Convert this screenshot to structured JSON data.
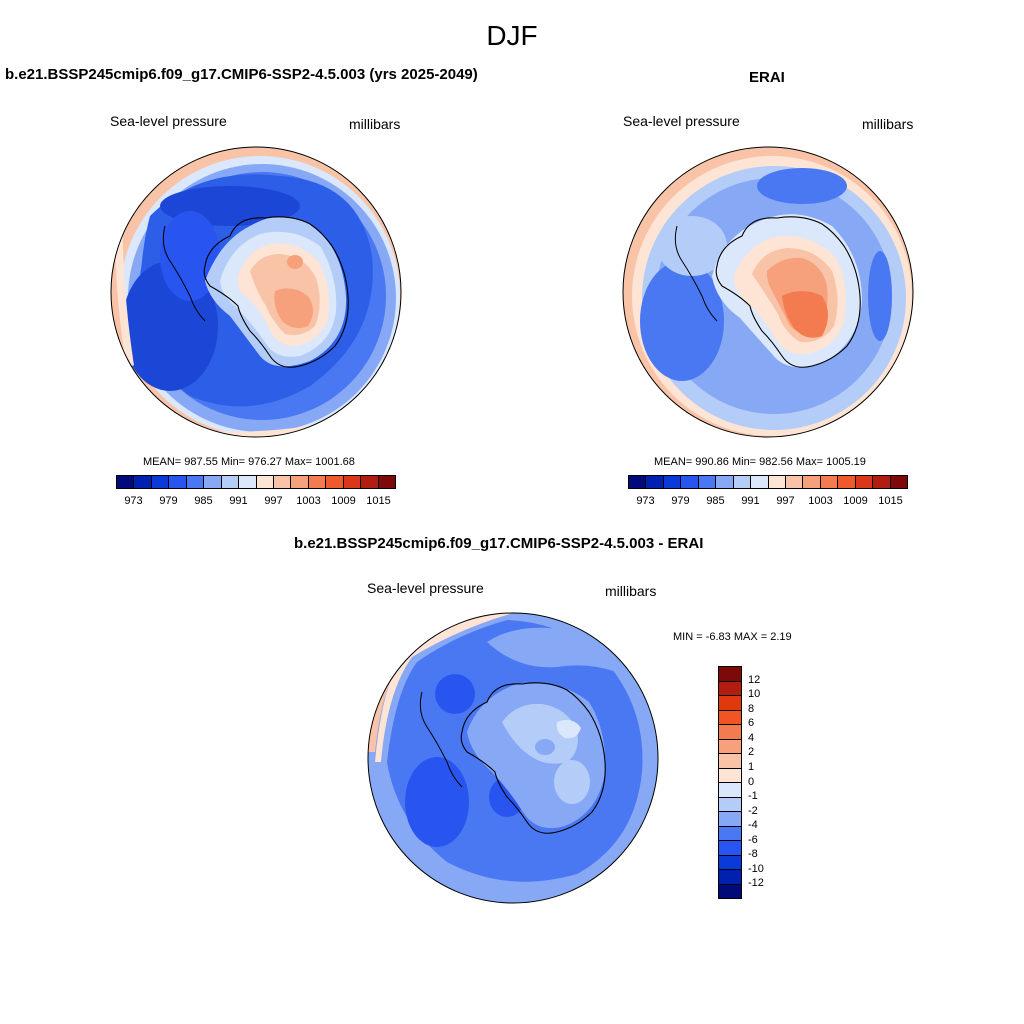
{
  "title": "DJF",
  "panels": {
    "model": {
      "title": "b.e21.BSSP245cmip6.f09_g17.CMIP6-SSP2-4.5.003 (yrs 2025-2049)",
      "left_label": "Sea-level pressure",
      "right_label": "millibars",
      "stats": "MEAN= 987.55  Min= 976.27  Max= 1001.68"
    },
    "obs": {
      "title": "ERAI",
      "left_label": "Sea-level pressure",
      "right_label": "millibars",
      "stats": "MEAN= 990.86  Min= 982.56  Max= 1005.19"
    },
    "diff": {
      "title": "b.e21.BSSP245cmip6.f09_g17.CMIP6-SSP2-4.5.003 - ERAI",
      "left_label": "Sea-level pressure",
      "right_label": "millibars",
      "stats": "MIN =  -6.83 MAX =   2.19"
    }
  },
  "abs_colorbar": {
    "colors": [
      "#000a7a",
      "#0020b0",
      "#0a3ad8",
      "#2855f0",
      "#4a78f2",
      "#86a8f5",
      "#b4cdf8",
      "#dbe8fb",
      "#fde4d4",
      "#f9c3a7",
      "#f6a07c",
      "#f47a50",
      "#ef5a2c",
      "#d9361a",
      "#b31c10",
      "#7d0a08"
    ],
    "ticks": [
      "973",
      "979",
      "985",
      "991",
      "997",
      "1003",
      "1009",
      "1015"
    ]
  },
  "diff_colorbar": {
    "colors": [
      "#7d0a08",
      "#b31c10",
      "#e0380f",
      "#f25523",
      "#f47a50",
      "#f6a07c",
      "#f9c3a7",
      "#fde4d4",
      "#dbe8fb",
      "#b4cdf8",
      "#86a8f5",
      "#4a78f2",
      "#2855f0",
      "#0a3ad8",
      "#0020b0",
      "#000a7a"
    ],
    "ticks": [
      "12",
      "10",
      "8",
      "6",
      "4",
      "2",
      "1",
      "0",
      "-1",
      "-2",
      "-4",
      "-6",
      "-8",
      "-10",
      "-12"
    ]
  },
  "map_colors": {
    "deep": "#1c47d6",
    "dark": "#2d5ee8",
    "mid": "#4a78f2",
    "light": "#86a8f5",
    "pale": "#b4cdf8",
    "verypale": "#dbe8fb",
    "warm1": "#fde4d4",
    "warm2": "#f9c3a7",
    "warm3": "#f6a07c",
    "warm4": "#f47a50"
  }
}
